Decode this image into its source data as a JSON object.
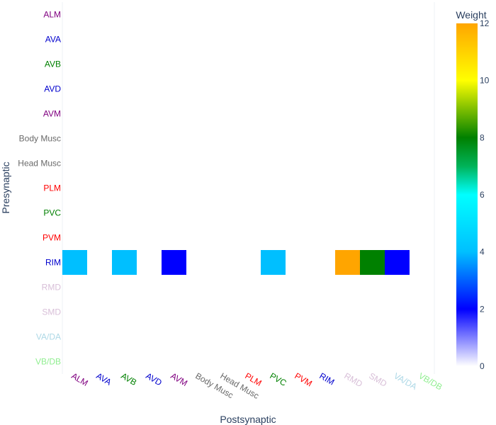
{
  "chart_data": {
    "type": "heatmap",
    "title": "",
    "xlabel": "Postsynaptic",
    "ylabel": "Presynaptic",
    "x_categories": [
      "ALM",
      "AVA",
      "AVB",
      "AVD",
      "AVM",
      "Body Musc",
      "Head Musc",
      "PLM",
      "PVC",
      "PVM",
      "RIM",
      "RMD",
      "SMD",
      "VA/DA",
      "VB/DB"
    ],
    "y_categories": [
      "ALM",
      "AVA",
      "AVB",
      "AVD",
      "AVM",
      "Body Musc",
      "Head Musc",
      "PLM",
      "PVC",
      "PVM",
      "RIM",
      "RMD",
      "SMD",
      "VA/DA",
      "VB/DB"
    ],
    "label_colors": {
      "ALM": "#800080",
      "AVA": "#0000cd",
      "AVB": "#008000",
      "AVD": "#0000cd",
      "AVM": "#800080",
      "Body Musc": "#696969",
      "Head Musc": "#696969",
      "PLM": "#ff0000",
      "PVC": "#008000",
      "PVM": "#ff0000",
      "RIM": "#0000cd",
      "RMD": "#d8bfd8",
      "SMD": "#d8bfd8",
      "VA/DA": "#add8e6",
      "VB/DB": "#90ee90"
    },
    "cells": [
      {
        "pre": "RIM",
        "post": "ALM",
        "weight": 4
      },
      {
        "pre": "RIM",
        "post": "AVB",
        "weight": 4
      },
      {
        "pre": "RIM",
        "post": "AVM",
        "weight": 2
      },
      {
        "pre": "RIM",
        "post": "PVC",
        "weight": 4
      },
      {
        "pre": "RIM",
        "post": "RMD",
        "weight": 12
      },
      {
        "pre": "RIM",
        "post": "SMD",
        "weight": 8
      },
      {
        "pre": "RIM",
        "post": "VA/DA",
        "weight": 2
      }
    ],
    "colorbar": {
      "title": "Weight",
      "range": [
        0,
        12
      ],
      "ticks": [
        0,
        2,
        4,
        6,
        8,
        10,
        12
      ],
      "colorscale": [
        [
          0.0,
          "#ffffff"
        ],
        [
          0.16667,
          "#0000ff"
        ],
        [
          0.33333,
          "#00bfff"
        ],
        [
          0.5,
          "#00ffff"
        ],
        [
          0.58333,
          "#00b359"
        ],
        [
          0.66667,
          "#008000"
        ],
        [
          0.75,
          "#7fbf00"
        ],
        [
          0.83333,
          "#ffff00"
        ],
        [
          1.0,
          "#ffa500"
        ]
      ]
    }
  }
}
